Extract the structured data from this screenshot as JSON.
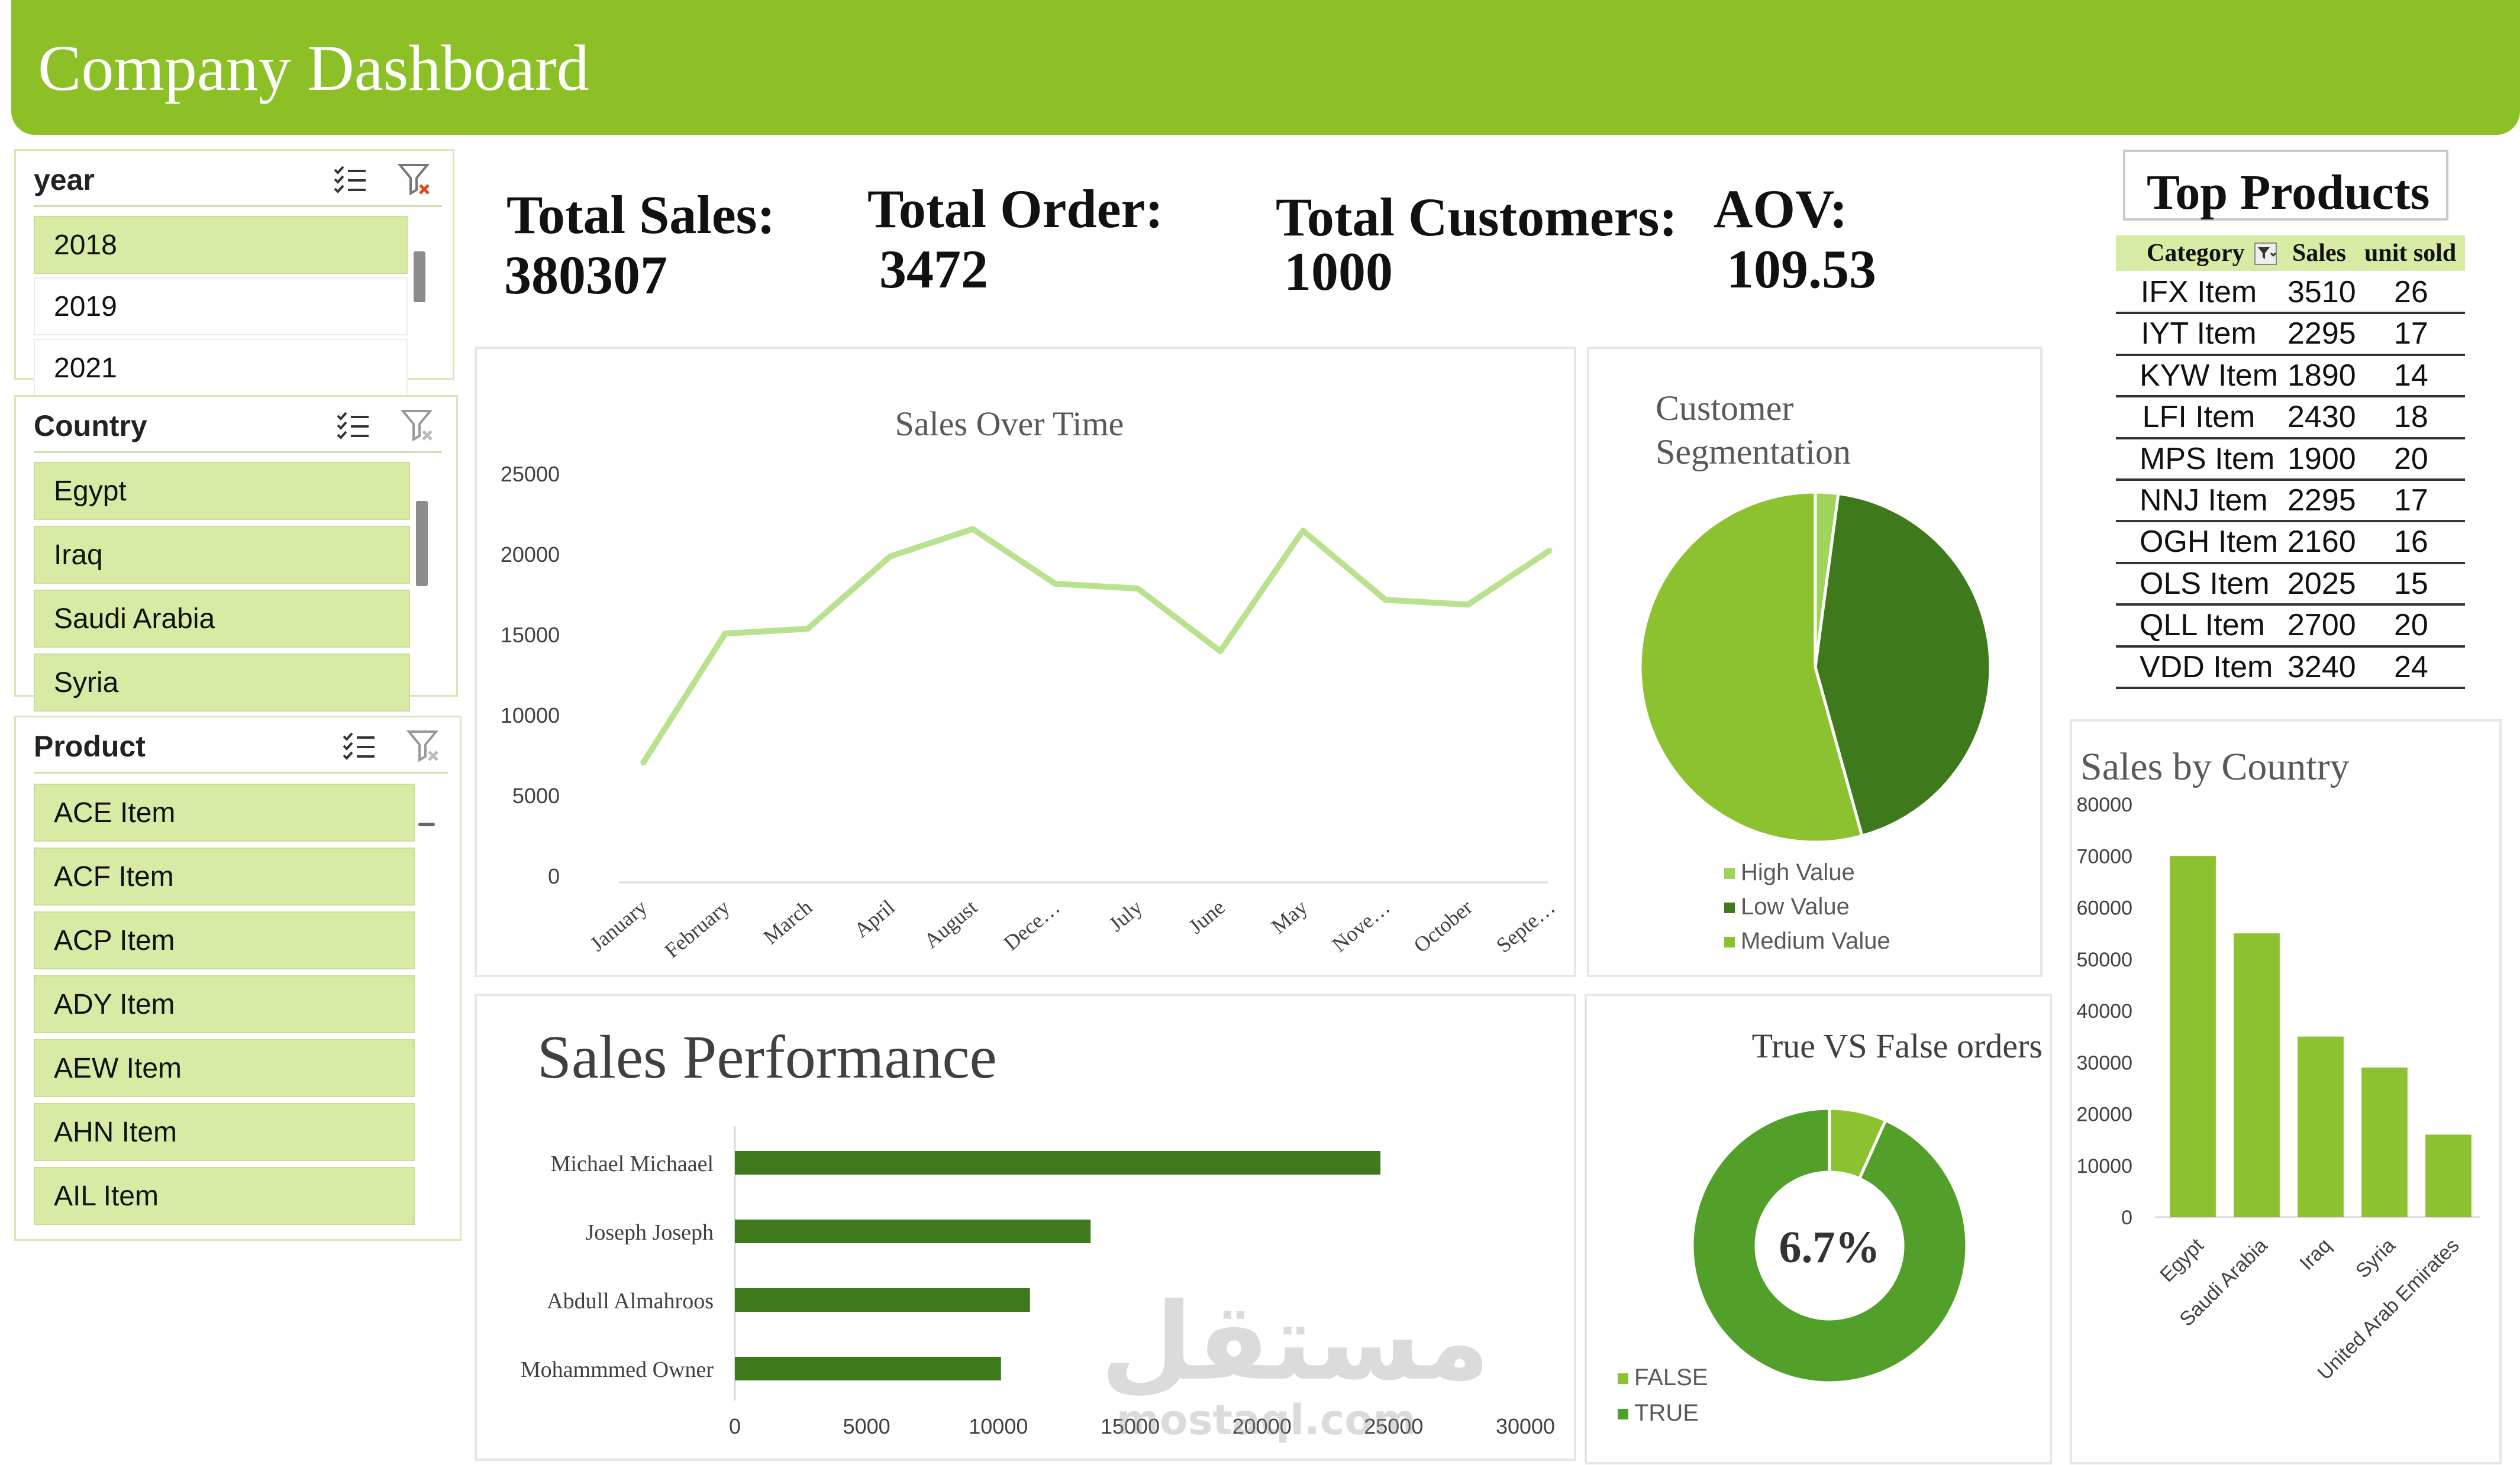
{
  "header": {
    "title": "Company Dashboard"
  },
  "slicers": {
    "year": {
      "title": "year",
      "items": [
        "2018",
        "2019",
        "2021"
      ],
      "selected": [
        "2018"
      ]
    },
    "country": {
      "title": "Country",
      "items": [
        "Egypt",
        "Iraq",
        "Saudi Arabia",
        "Syria"
      ]
    },
    "product": {
      "title": "Product",
      "items": [
        "ACE Item",
        "ACF Item",
        "ACP Item",
        "ADY Item",
        "AEW Item",
        "AHN Item",
        "AIL Item"
      ]
    }
  },
  "kpis": {
    "total_sales": {
      "label": "Total Sales:",
      "value": "380307"
    },
    "total_order": {
      "label": "Total Order:",
      "value": "3472"
    },
    "total_customers": {
      "label": "Total Customers:",
      "value": "1000"
    },
    "aov": {
      "label": "AOV:",
      "value": "109.53"
    }
  },
  "top_products": {
    "title": "Top Products",
    "columns": [
      "Category",
      "Sales",
      "unit sold"
    ],
    "rows": [
      [
        "IFX Item",
        "3510",
        "26"
      ],
      [
        "IYT Item",
        "2295",
        "17"
      ],
      [
        "KYW Item",
        "1890",
        "14"
      ],
      [
        "LFI Item",
        "2430",
        "18"
      ],
      [
        "MPS Item",
        "1900",
        "20"
      ],
      [
        "NNJ Item",
        "2295",
        "17"
      ],
      [
        "OGH Item",
        "2160",
        "16"
      ],
      [
        "OLS Item",
        "2025",
        "15"
      ],
      [
        "QLL Item",
        "2700",
        "20"
      ],
      [
        "VDD Item",
        "3240",
        "24"
      ]
    ]
  },
  "colors": {
    "accent": "#8dc026",
    "light_green": "#b8e28d",
    "dark_green": "#3e7a1b",
    "mid_green": "#52a02a",
    "bar_green": "#8cc22f"
  },
  "watermark": {
    "text": "مستقل",
    "sub": "mostaql.com"
  },
  "chart_data": [
    {
      "type": "line",
      "title": "Sales  Over Time",
      "categories": [
        "January",
        "February",
        "March",
        "April",
        "August",
        "Dece…",
        "July",
        "June",
        "May",
        "Nove…",
        "October",
        "Septe…"
      ],
      "values": [
        7000,
        15100,
        15400,
        19900,
        21600,
        18200,
        17900,
        14000,
        21500,
        17200,
        16900,
        20300
      ],
      "ylim": [
        0,
        25000
      ],
      "yticks": [
        "0",
        "5000",
        "10000",
        "15000",
        "20000",
        "25000"
      ]
    },
    {
      "type": "pie",
      "title_lines": [
        "Customer",
        "Segmentation"
      ],
      "labels": [
        "High Value",
        "Low Value",
        "Medium Value"
      ],
      "values": [
        2.1,
        43.6,
        54.3
      ],
      "colors": [
        "#9fd35a",
        "#3e7a1b",
        "#8cc22f"
      ]
    },
    {
      "type": "bar",
      "orientation": "horizontal",
      "title": "Sales Performance",
      "categories": [
        "Michael Michaael",
        "Joseph Joseph",
        "Abdull Almahroos",
        "Mohammmed Owner"
      ],
      "values": [
        24500,
        13500,
        11200,
        10100
      ],
      "xlim": [
        0,
        30000
      ],
      "xticks": [
        "0",
        "5000",
        "10000",
        "15000",
        "20000",
        "25000",
        "30000"
      ]
    },
    {
      "type": "pie",
      "title": "True VS False orders",
      "center_label": "6.7%",
      "labels": [
        "FALSE",
        "TRUE"
      ],
      "values": [
        6.7,
        93.3
      ],
      "colors": [
        "#8cc22f",
        "#52a02a"
      ]
    },
    {
      "type": "bar",
      "title": "Sales by Country",
      "categories": [
        "Egypt",
        "Saudi Arabia",
        "Iraq",
        "Syria",
        "United Arab Emirates"
      ],
      "values": [
        70000,
        55000,
        35000,
        29000,
        16000
      ],
      "ylim": [
        0,
        80000
      ],
      "yticks": [
        "0",
        "10000",
        "20000",
        "30000",
        "40000",
        "50000",
        "60000",
        "70000",
        "80000"
      ]
    }
  ]
}
